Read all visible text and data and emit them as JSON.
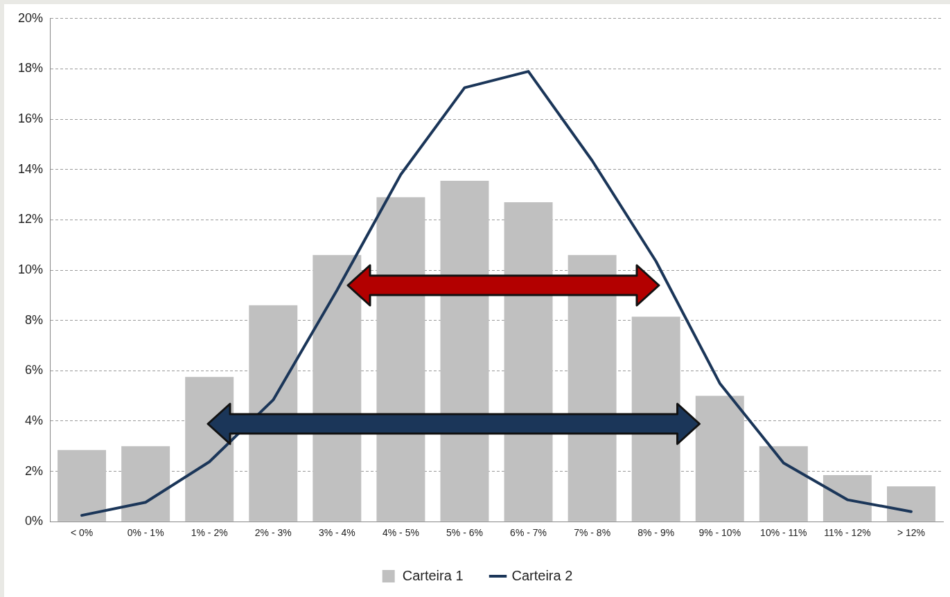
{
  "chart_data": {
    "type": "bar",
    "categories": [
      "< 0%",
      "0% - 1%",
      "1% - 2%",
      "2% - 3%",
      "3% - 4%",
      "4% - 5%",
      "5% - 6%",
      "6% - 7%",
      "7% - 8%",
      "8% - 9%",
      "9% - 10%",
      "10% - 11%",
      "11% - 12%",
      "> 12%"
    ],
    "series": [
      {
        "name": "Carteira 1",
        "color": "#c0c0c0",
        "values": [
          2.85,
          3.0,
          5.75,
          8.6,
          10.6,
          12.9,
          13.55,
          12.7,
          10.6,
          8.15,
          5.0,
          3.0,
          1.85,
          1.4
        ]
      },
      {
        "name": "Carteira 2",
        "type": "line",
        "color": "#1b3659",
        "values": [
          0.25,
          0.77,
          2.38,
          4.84,
          9.2,
          13.8,
          17.25,
          17.9,
          14.35,
          10.35,
          5.5,
          2.33,
          0.87,
          0.4
        ]
      }
    ],
    "ylim": [
      0,
      20
    ],
    "yticks": [
      {
        "value": 0,
        "label": "0%"
      },
      {
        "value": 2,
        "label": "2%"
      },
      {
        "value": 4,
        "label": "4%"
      },
      {
        "value": 6,
        "label": "6%"
      },
      {
        "value": 8,
        "label": "8%"
      },
      {
        "value": 10,
        "label": "10%"
      },
      {
        "value": 12,
        "label": "12%"
      },
      {
        "value": 14,
        "label": "14%"
      },
      {
        "value": 16,
        "label": "16%"
      },
      {
        "value": 18,
        "label": "18%"
      },
      {
        "value": 20,
        "label": "20%"
      }
    ],
    "grid": "y",
    "legend": "bottom",
    "marker": "none"
  }
}
